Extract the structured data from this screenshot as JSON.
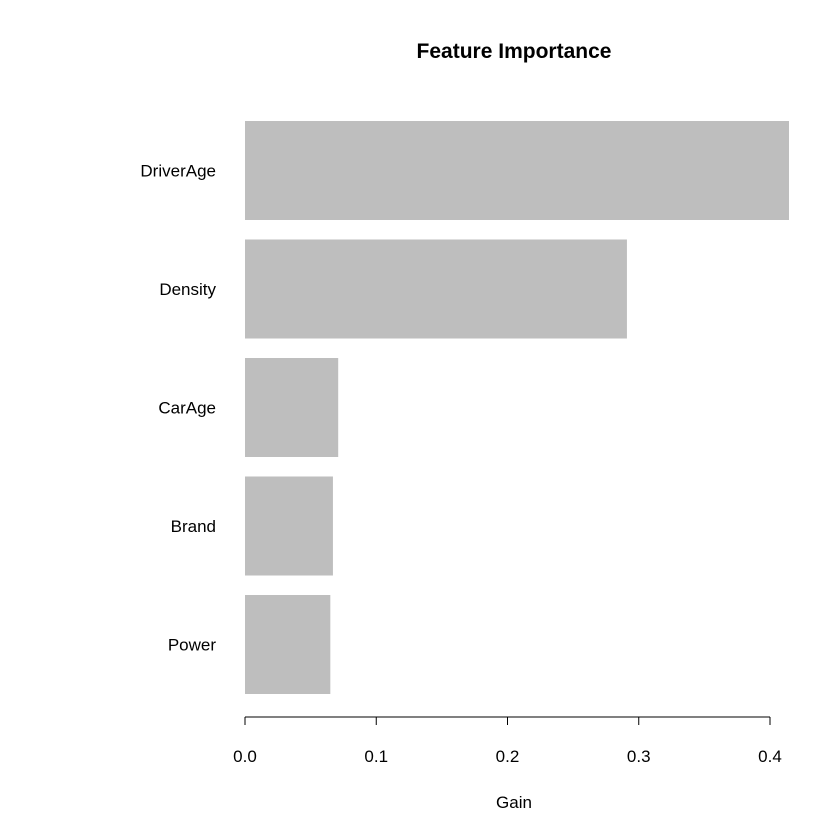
{
  "chart_data": {
    "type": "bar",
    "orientation": "horizontal",
    "title": "Feature Importance",
    "xlabel": "Gain",
    "ylabel": "",
    "categories": [
      "DriverAge",
      "Density",
      "CarAge",
      "Brand",
      "Power"
    ],
    "values": [
      0.415,
      0.291,
      0.071,
      0.067,
      0.065
    ],
    "xlim": [
      0,
      0.4
    ],
    "ticks": [
      0.0,
      0.1,
      0.2,
      0.3,
      0.4
    ],
    "tick_labels": [
      "0.0",
      "0.1",
      "0.2",
      "0.3",
      "0.4"
    ],
    "bar_color": "#bebebe",
    "grid": false,
    "legend": "none"
  }
}
